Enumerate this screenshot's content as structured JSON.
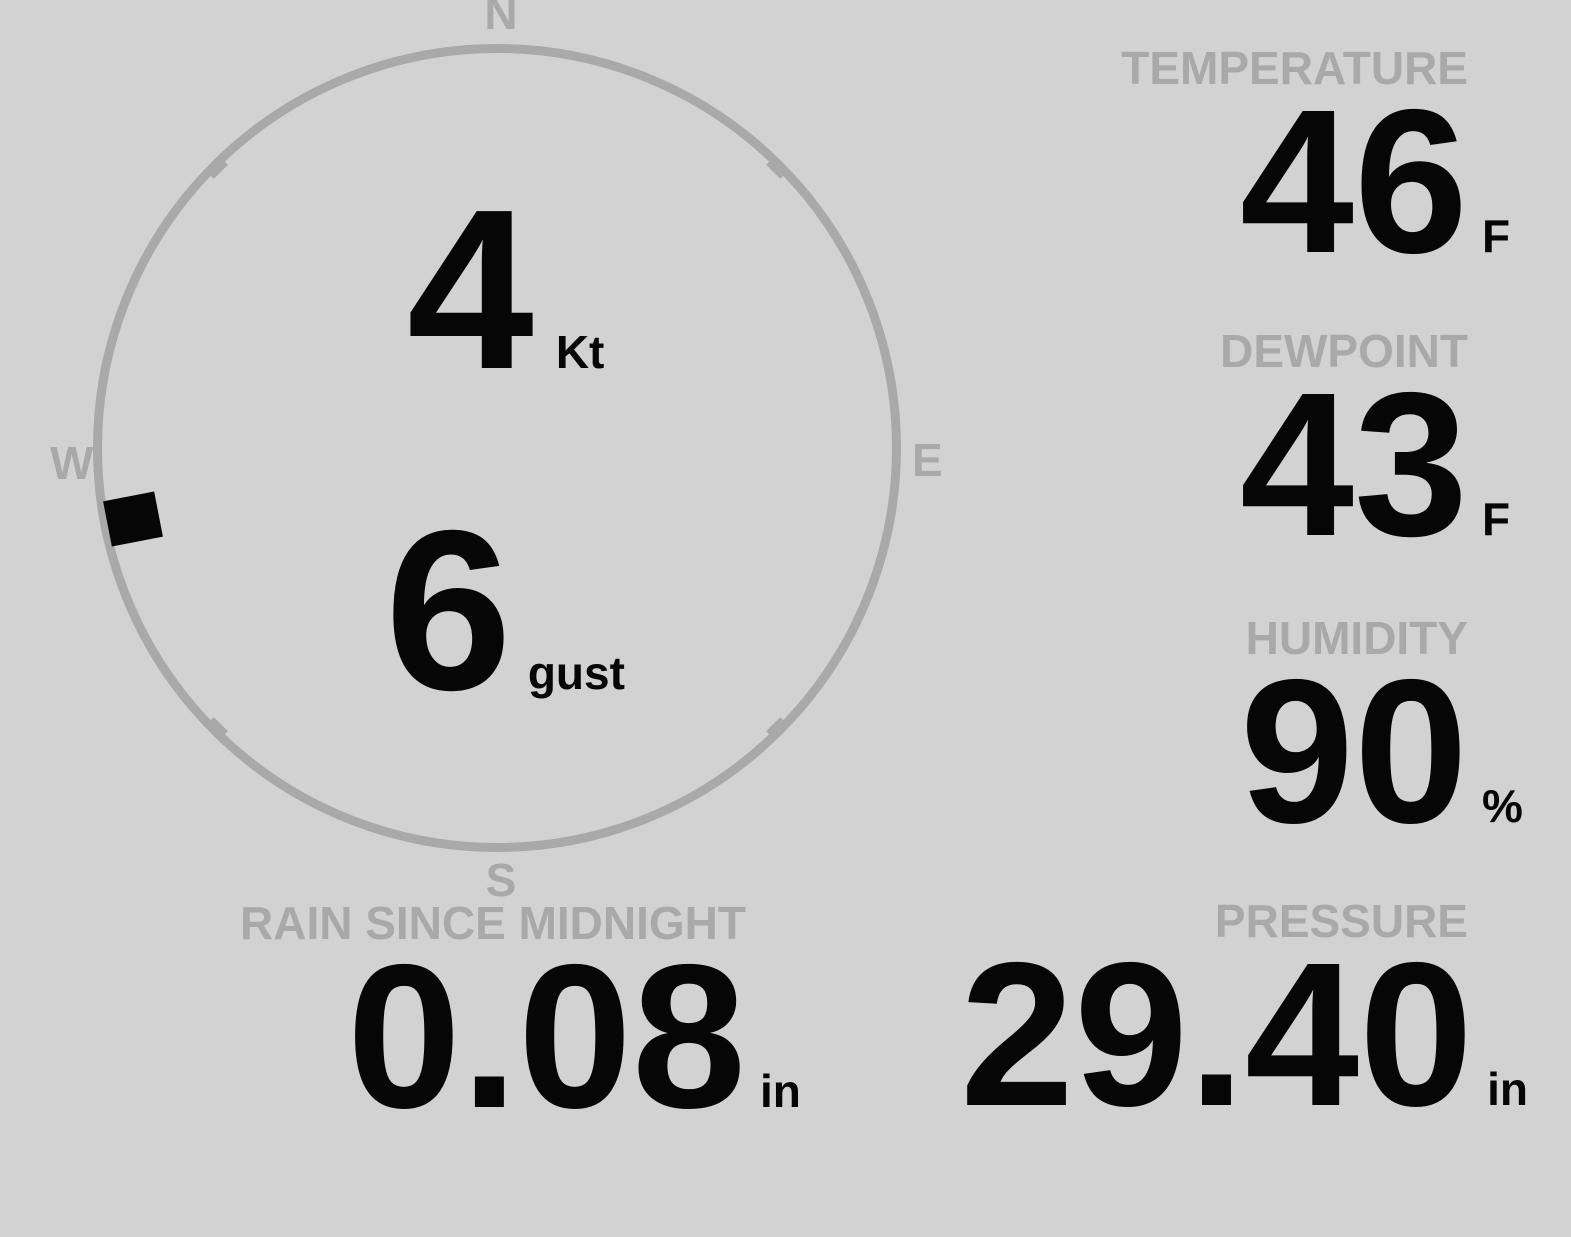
{
  "theme": {
    "background": "#d2d2d2",
    "muted_gray": "#a9a9a9",
    "value_black": "#060606"
  },
  "wind": {
    "compass": {
      "north": "N",
      "east": "E",
      "south": "S",
      "west": "W"
    },
    "speed": "4",
    "speed_unit": "Kt",
    "gust": "6",
    "gust_unit": "gust",
    "direction_deg": 259
  },
  "metrics": {
    "temperature": {
      "label": "TEMPERATURE",
      "value": "46",
      "unit": "F"
    },
    "dewpoint": {
      "label": "DEWPOINT",
      "value": "43",
      "unit": "F"
    },
    "humidity": {
      "label": "HUMIDITY",
      "value": "90",
      "unit": "%"
    },
    "pressure": {
      "label": "PRESSURE",
      "value": "29.40",
      "unit": "in"
    },
    "rain": {
      "label": "RAIN SINCE MIDNIGHT",
      "value": "0.08",
      "unit": "in"
    }
  }
}
